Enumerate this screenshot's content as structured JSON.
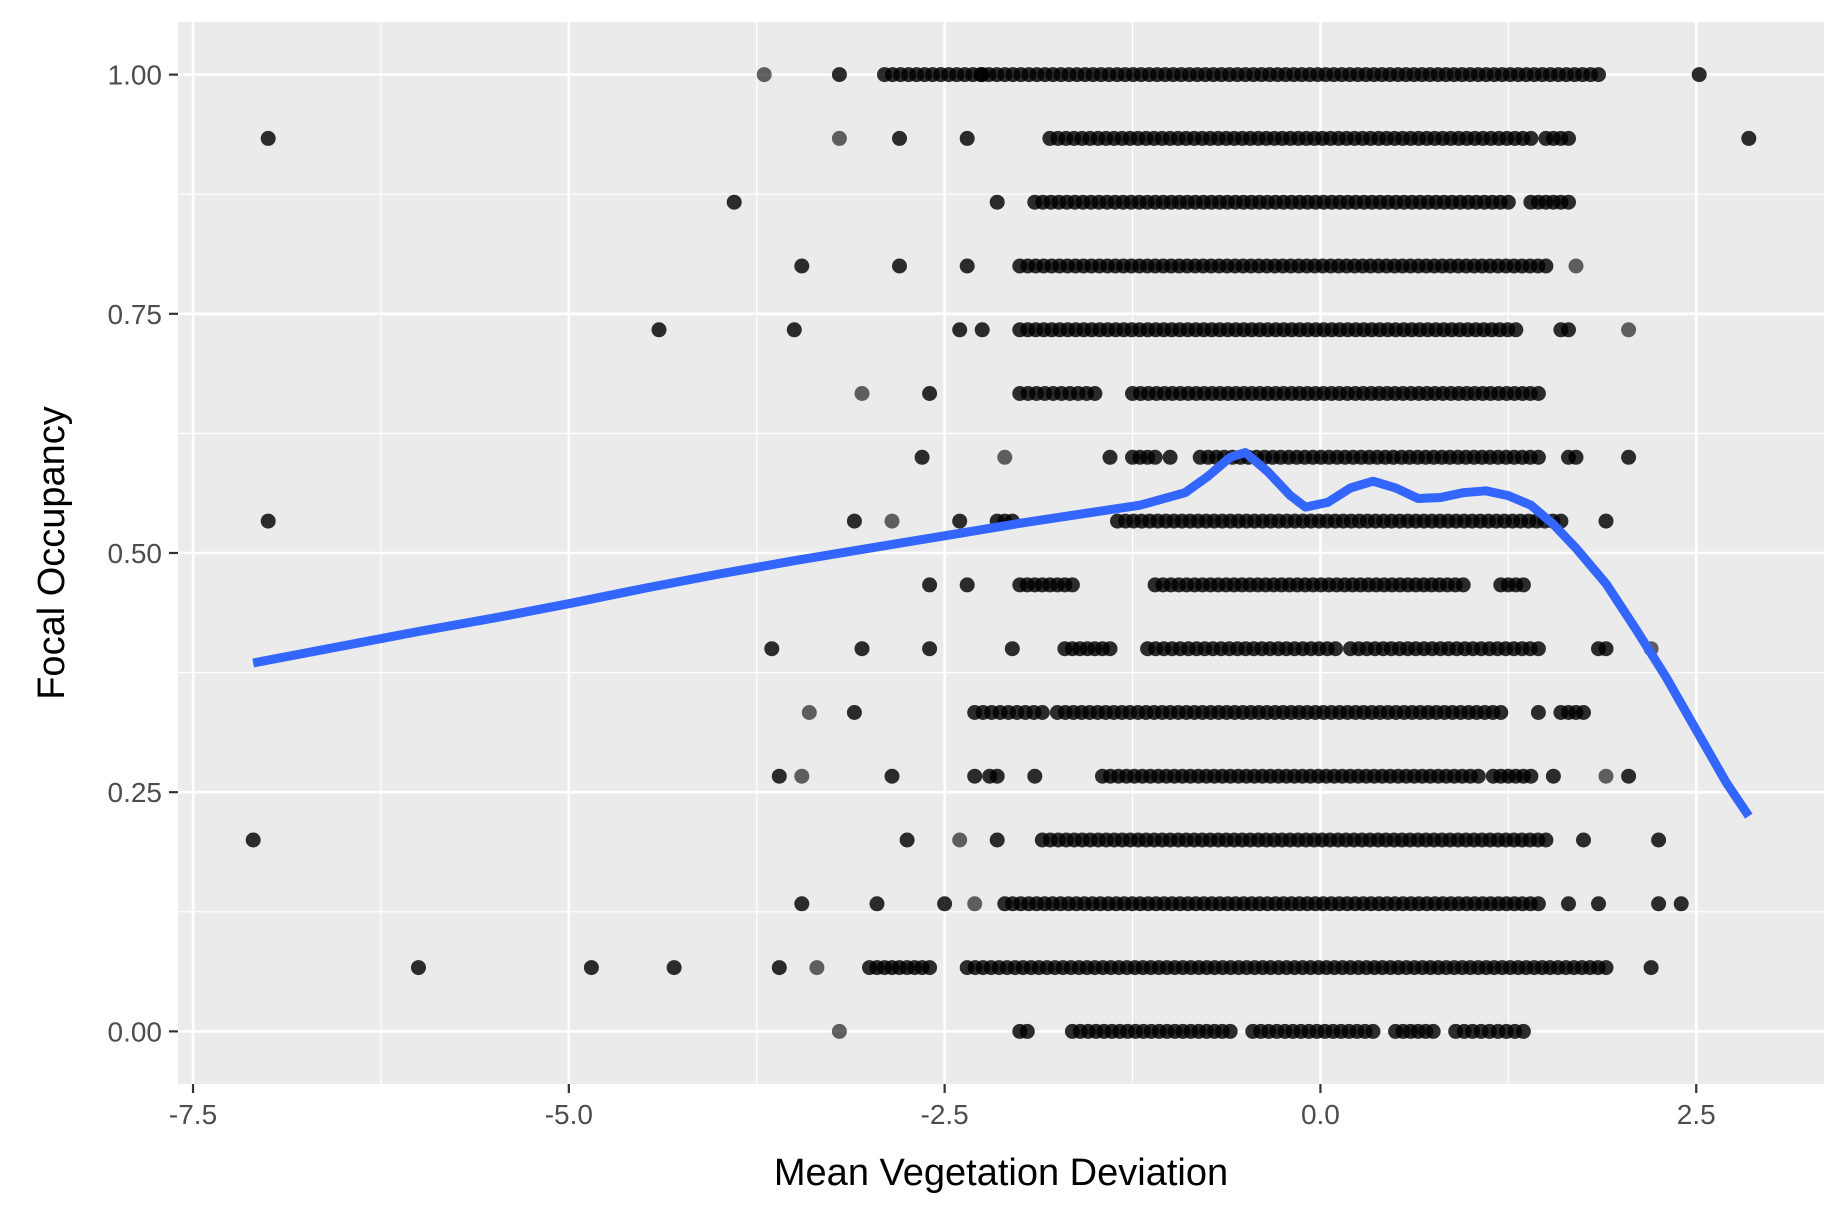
{
  "chart_data": {
    "type": "scatter",
    "title": "",
    "xlabel": "Mean Vegetation Deviation",
    "ylabel": "Focal Occupancy",
    "xlim": [
      -7.6,
      3.35
    ],
    "ylim": [
      -0.055,
      1.055
    ],
    "x_ticks": [
      -7.5,
      -5.0,
      -2.5,
      0.0,
      2.5
    ],
    "x_tick_labels": [
      "-7.5",
      "-5.0",
      "-2.5",
      "0.0",
      "2.5"
    ],
    "y_ticks": [
      0.0,
      0.25,
      0.5,
      0.75,
      1.0
    ],
    "y_tick_labels": [
      "0.00",
      "0.25",
      "0.50",
      "0.75",
      "1.00"
    ],
    "grid": true,
    "panel_background": "#ebebeb",
    "point_color": "#000000",
    "smooth_color": "#3366ff",
    "levels": [
      {
        "y": 1.0,
        "isolated": [
          -3.7,
          -3.2,
          -2.25,
          2.52
        ],
        "ranges": [
          [
            -2.9,
            1.85
          ]
        ]
      },
      {
        "y": 0.9333,
        "isolated": [
          -7.0,
          -3.2,
          -2.8,
          -2.35,
          2.85
        ],
        "ranges": [
          [
            -1.8,
            1.4
          ],
          [
            1.5,
            1.65
          ]
        ]
      },
      {
        "y": 0.8667,
        "isolated": [
          -3.9,
          -2.15
        ],
        "ranges": [
          [
            -1.9,
            1.25
          ],
          [
            1.4,
            1.65
          ]
        ]
      },
      {
        "y": 0.8,
        "isolated": [
          -3.45,
          -2.8,
          -2.35,
          1.7
        ],
        "ranges": [
          [
            -2.0,
            1.5
          ]
        ]
      },
      {
        "y": 0.7333,
        "isolated": [
          -4.4,
          -3.5,
          -2.4,
          -2.25,
          2.05
        ],
        "ranges": [
          [
            -2.0,
            1.3
          ],
          [
            1.6,
            1.65
          ]
        ]
      },
      {
        "y": 0.6667,
        "isolated": [
          -3.05,
          -2.6
        ],
        "ranges": [
          [
            -2.0,
            -1.5
          ],
          [
            -1.25,
            1.45
          ]
        ]
      },
      {
        "y": 0.6,
        "isolated": [
          -2.65,
          -2.1,
          -1.4,
          -1.0,
          2.05
        ],
        "ranges": [
          [
            -1.25,
            -1.1
          ],
          [
            -0.8,
            1.45
          ],
          [
            1.65,
            1.7
          ]
        ]
      },
      {
        "y": 0.5333,
        "isolated": [
          -7.0,
          -3.1,
          -2.85,
          -2.4,
          1.9
        ],
        "ranges": [
          [
            -2.15,
            -2.05
          ],
          [
            -1.35,
            1.6
          ]
        ]
      },
      {
        "y": 0.4667,
        "isolated": [
          -2.6,
          -2.35
        ],
        "ranges": [
          [
            -2.0,
            -1.65
          ],
          [
            -1.1,
            0.95
          ],
          [
            1.2,
            1.35
          ]
        ]
      },
      {
        "y": 0.4,
        "isolated": [
          -3.65,
          -3.05,
          -2.6,
          -2.05,
          2.2
        ],
        "ranges": [
          [
            -1.7,
            -1.4
          ],
          [
            -1.15,
            0.1
          ],
          [
            0.2,
            1.45
          ],
          [
            1.85,
            1.9
          ]
        ]
      },
      {
        "y": 0.3333,
        "isolated": [
          -3.4,
          -3.1,
          1.45
        ],
        "ranges": [
          [
            -2.3,
            -1.85
          ],
          [
            -1.75,
            1.2
          ],
          [
            1.6,
            1.75
          ]
        ]
      },
      {
        "y": 0.2667,
        "isolated": [
          -3.6,
          -3.45,
          -2.85,
          -2.3,
          -1.9,
          1.55,
          1.9,
          2.05
        ],
        "ranges": [
          [
            -2.2,
            -2.15
          ],
          [
            -1.45,
            1.05
          ],
          [
            1.15,
            1.4
          ]
        ]
      },
      {
        "y": 0.2,
        "isolated": [
          -7.1,
          -2.75,
          -2.4,
          -2.15,
          1.75,
          2.25
        ],
        "ranges": [
          [
            -1.85,
            1.5
          ]
        ]
      },
      {
        "y": 0.1333,
        "isolated": [
          -3.45,
          -2.95,
          -2.5,
          -2.3,
          1.65,
          1.85,
          2.25,
          2.4
        ],
        "ranges": [
          [
            -2.1,
            1.45
          ]
        ]
      },
      {
        "y": 0.0667,
        "isolated": [
          -6.0,
          -4.85,
          -4.3,
          -3.6,
          -3.35,
          2.2
        ],
        "ranges": [
          [
            -3.0,
            -2.6
          ],
          [
            -2.35,
            1.9
          ]
        ]
      },
      {
        "y": 0.0,
        "isolated": [
          -3.2
        ],
        "ranges": [
          [
            -2.0,
            -1.95
          ],
          [
            -1.65,
            -0.6
          ],
          [
            -0.45,
            0.35
          ],
          [
            0.5,
            0.75
          ],
          [
            0.9,
            1.35
          ]
        ]
      }
    ],
    "smooth": {
      "name": "",
      "x": [
        -7.1,
        -6.5,
        -6.0,
        -5.5,
        -5.0,
        -4.5,
        -4.0,
        -3.5,
        -3.0,
        -2.5,
        -2.0,
        -1.5,
        -1.2,
        -0.9,
        -0.75,
        -0.6,
        -0.5,
        -0.35,
        -0.2,
        -0.1,
        0.05,
        0.2,
        0.35,
        0.5,
        0.65,
        0.8,
        0.95,
        1.1,
        1.25,
        1.4,
        1.55,
        1.7,
        1.9,
        2.1,
        2.3,
        2.5,
        2.7,
        2.85
      ],
      "y": [
        0.385,
        0.403,
        0.418,
        0.432,
        0.447,
        0.463,
        0.478,
        0.492,
        0.505,
        0.518,
        0.531,
        0.543,
        0.55,
        0.563,
        0.58,
        0.6,
        0.605,
        0.585,
        0.56,
        0.548,
        0.553,
        0.568,
        0.575,
        0.568,
        0.557,
        0.558,
        0.563,
        0.565,
        0.56,
        0.55,
        0.53,
        0.505,
        0.468,
        0.42,
        0.37,
        0.315,
        0.26,
        0.225
      ]
    }
  }
}
